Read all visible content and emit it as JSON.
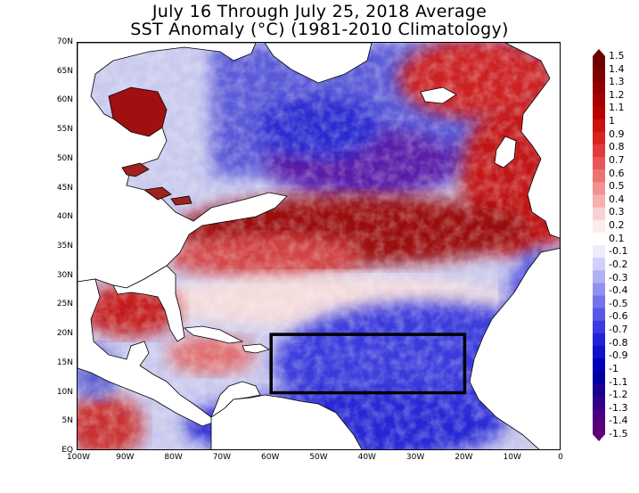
{
  "title_line1": "July 16 Through July 25, 2018 Average",
  "title_line2": "SST Anomaly (°C) (1981-2010 Climatology)",
  "map": {
    "lat_labels": [
      "70N",
      "65N",
      "60N",
      "55N",
      "50N",
      "45N",
      "40N",
      "35N",
      "30N",
      "25N",
      "20N",
      "15N",
      "10N",
      "5N",
      "EQ"
    ],
    "lon_labels": [
      "100W",
      "90W",
      "80W",
      "70W",
      "60W",
      "50W",
      "40W",
      "30W",
      "20W",
      "10W",
      "0"
    ],
    "lat_range": [
      0,
      70
    ],
    "lon_range": [
      -100,
      0
    ],
    "highlight_box": {
      "lon": [
        -60,
        -20
      ],
      "lat": [
        10,
        20
      ]
    },
    "land_color": "#ffffff",
    "warm_color": "#b40000",
    "cool_color": "#1a1ad0"
  },
  "colorbar": {
    "labels": [
      "1.5",
      "1.4",
      "1.3",
      "1.2",
      "1.1",
      "1",
      "0.9",
      "0.8",
      "0.7",
      "0.6",
      "0.5",
      "0.4",
      "0.3",
      "0.2",
      "0.1",
      "-0.1",
      "-0.2",
      "-0.3",
      "-0.4",
      "-0.5",
      "-0.6",
      "-0.7",
      "-0.8",
      "-0.9",
      "-1",
      "-1.1",
      "-1.2",
      "-1.3",
      "-1.4",
      "-1.5"
    ],
    "colors": [
      "#6e0000",
      "#800000",
      "#930000",
      "#a70000",
      "#bb0000",
      "#cc1111",
      "#d92222",
      "#e23b3b",
      "#e85757",
      "#ee7373",
      "#f39191",
      "#f7b0b0",
      "#fad0d0",
      "#fdecec",
      "#ffffff",
      "#ececfd",
      "#d0d0fa",
      "#b0b0f7",
      "#9191f3",
      "#7373ee",
      "#5757e8",
      "#3b3be2",
      "#2222d9",
      "#1111cc",
      "#0000bb",
      "#0000a0",
      "#1a0090",
      "#300088",
      "#4a0080",
      "#5c007a"
    ]
  }
}
